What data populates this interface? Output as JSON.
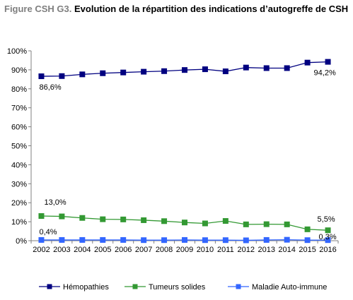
{
  "title_prefix": "Figure CSH G3.",
  "title_main": "Evolution de la répartition des indications d’autogreffe de CSH",
  "chart_data": {
    "type": "line",
    "x": [
      "2002",
      "2003",
      "2004",
      "2005",
      "2006",
      "2007",
      "2008",
      "2009",
      "2010",
      "2011",
      "2012",
      "2013",
      "2014",
      "2015",
      "2016"
    ],
    "ylim": [
      0,
      100
    ],
    "y_ticks": [
      "0%",
      "10%",
      "20%",
      "30%",
      "40%",
      "50%",
      "60%",
      "70%",
      "80%",
      "90%",
      "100%"
    ],
    "grid": false,
    "legend_position": "bottom",
    "series": [
      {
        "name": "Hémopathies",
        "color": "#000080",
        "marker": "square",
        "values": [
          86.6,
          86.7,
          87.6,
          88.2,
          88.6,
          89.0,
          89.3,
          89.9,
          90.3,
          89.2,
          91.2,
          90.9,
          90.9,
          93.8,
          94.2
        ],
        "labels": [
          {
            "index": 0,
            "text": "86,6%"
          },
          {
            "index": 14,
            "text": "94,2%"
          }
        ]
      },
      {
        "name": "Tumeurs solides",
        "color": "#339933",
        "marker": "square",
        "values": [
          13.0,
          12.8,
          12.0,
          11.3,
          11.2,
          10.8,
          10.3,
          9.6,
          9.1,
          10.4,
          8.6,
          8.7,
          8.6,
          6.0,
          5.5
        ],
        "labels": [
          {
            "index": 0,
            "text": "13,0%"
          },
          {
            "index": 14,
            "text": "5,5%"
          }
        ]
      },
      {
        "name": "Maladie Auto-immune",
        "color": "#3366ff",
        "marker": "square",
        "values": [
          0.4,
          0.4,
          0.4,
          0.4,
          0.4,
          0.3,
          0.3,
          0.4,
          0.3,
          0.3,
          0.2,
          0.4,
          0.5,
          0.3,
          0.3
        ],
        "labels": [
          {
            "index": 0,
            "text": "0,4%"
          },
          {
            "index": 14,
            "text": "0,3%"
          }
        ]
      }
    ]
  }
}
